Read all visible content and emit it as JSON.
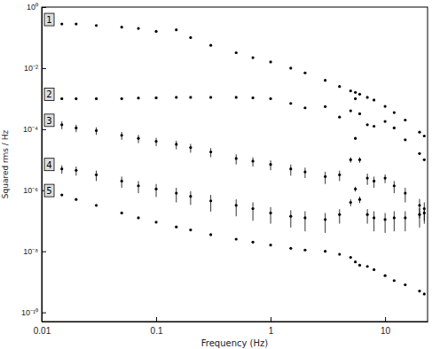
{
  "chart_data": {
    "type": "scatter",
    "x_label": "Frequency (Hz)",
    "y_label": "Squared rms / Hz",
    "log": true,
    "grid": false,
    "marker": "circle",
    "color": "#000000",
    "xlim": [
      0.01,
      23.5
    ],
    "ylim": [
      5e-11,
      1
    ],
    "xticks": [
      0.01,
      0.1,
      1,
      10
    ],
    "yticks": [
      {
        "value": 1e-10,
        "label": "10⁻¹⁰"
      },
      {
        "value": 1e-08,
        "label": "10⁻⁸"
      },
      {
        "value": 1e-06,
        "label": "10⁻⁶"
      },
      {
        "value": 0.0001,
        "label": "10⁻⁴"
      },
      {
        "value": 0.01,
        "label": "10⁻²"
      },
      {
        "value": 1,
        "label": "10⁰"
      }
    ],
    "x": [
      0.015,
      0.02,
      0.03,
      0.05,
      0.07,
      0.1,
      0.15,
      0.2,
      0.3,
      0.5,
      0.7,
      1,
      1.5,
      2,
      3,
      4,
      5,
      5.5,
      6,
      7,
      8,
      10,
      12,
      15,
      20,
      22
    ],
    "series": [
      {
        "name": "1",
        "color": "#000000",
        "values": [
          0.28,
          0.28,
          0.25,
          0.22,
          0.2,
          0.16,
          0.18,
          0.1,
          0.056,
          0.032,
          0.022,
          0.016,
          0.01,
          0.007,
          0.004,
          0.0025,
          0.0018,
          0.0016,
          0.0014,
          0.0011,
          0.0009,
          0.00056,
          0.00035,
          0.0002,
          8e-05,
          6e-05
        ]
      },
      {
        "name": "2",
        "color": "#000000",
        "values": [
          0.001,
          0.001,
          0.001,
          0.001,
          0.00105,
          0.00107,
          0.0011,
          0.0011,
          0.0011,
          0.0011,
          0.00107,
          0.001,
          0.0007,
          0.0005,
          0.00055,
          0.00025,
          0.0004,
          0.001,
          0.00032,
          0.00014,
          0.000125,
          0.00018,
          0.00011,
          4.5e-05,
          1.6e-05,
          1e-05
        ]
      },
      {
        "name": "3",
        "color": "#000000",
        "values": [
          0.00014,
          0.00011,
          9e-05,
          6.3e-05,
          5e-05,
          4e-05,
          3.2e-05,
          2.5e-05,
          1.8e-05,
          1.1e-05,
          9e-06,
          7e-06,
          5e-06,
          4e-06,
          2.8e-06,
          3.2e-06,
          1e-05,
          5e-05,
          1e-05,
          2.5e-06,
          2e-06,
          2.5e-06,
          1.4e-06,
          8e-07,
          3.2e-07,
          2.5e-07
        ],
        "errors": [
          4e-05,
          3e-05,
          2.5e-05,
          1.8e-05,
          1.5e-05,
          1.2e-05,
          1e-05,
          8e-06,
          6e-06,
          4e-06,
          3e-06,
          2.5e-06,
          2e-06,
          1.5e-06,
          1.2e-06,
          1.2e-06,
          2e-06,
          5e-06,
          2e-06,
          1e-06,
          8e-07,
          8e-07,
          6e-07,
          4e-07,
          2e-07,
          1.5e-07
        ]
      },
      {
        "name": "4",
        "color": "#000000",
        "values": [
          5e-06,
          4.5e-06,
          3.2e-06,
          2e-06,
          1.4e-06,
          1.1e-06,
          8e-07,
          6.3e-07,
          4.5e-07,
          3.2e-07,
          2.5e-07,
          1.8e-07,
          1.4e-07,
          1.25e-07,
          1.1e-07,
          1.6e-07,
          4e-07,
          1.1e-06,
          5e-07,
          1.6e-07,
          1.25e-07,
          1.1e-07,
          1.25e-07,
          1.25e-07,
          1.6e-07,
          1.8e-07
        ],
        "errors": [
          1.5e-06,
          1.5e-06,
          1.2e-06,
          8e-07,
          6e-07,
          5e-07,
          4e-07,
          3e-07,
          2.5e-07,
          1.8e-07,
          1.5e-07,
          1e-07,
          8e-08,
          8e-08,
          7e-08,
          8e-08,
          1e-07,
          2e-07,
          1.2e-07,
          8e-08,
          8e-08,
          7e-08,
          8e-08,
          8e-08,
          1e-07,
          1e-07
        ]
      },
      {
        "name": "5",
        "color": "#000000",
        "values": [
          7e-07,
          5e-07,
          3.2e-07,
          1.8e-07,
          1.25e-07,
          9e-08,
          6.3e-08,
          5e-08,
          3.5e-08,
          2.5e-08,
          2e-08,
          1.6e-08,
          1.25e-08,
          1.1e-08,
          1e-08,
          8e-09,
          6.3e-09,
          4.5e-09,
          3.5e-09,
          3.2e-09,
          2.5e-09,
          1.6e-09,
          1.1e-09,
          8e-10,
          5e-10,
          4e-10
        ]
      }
    ]
  }
}
